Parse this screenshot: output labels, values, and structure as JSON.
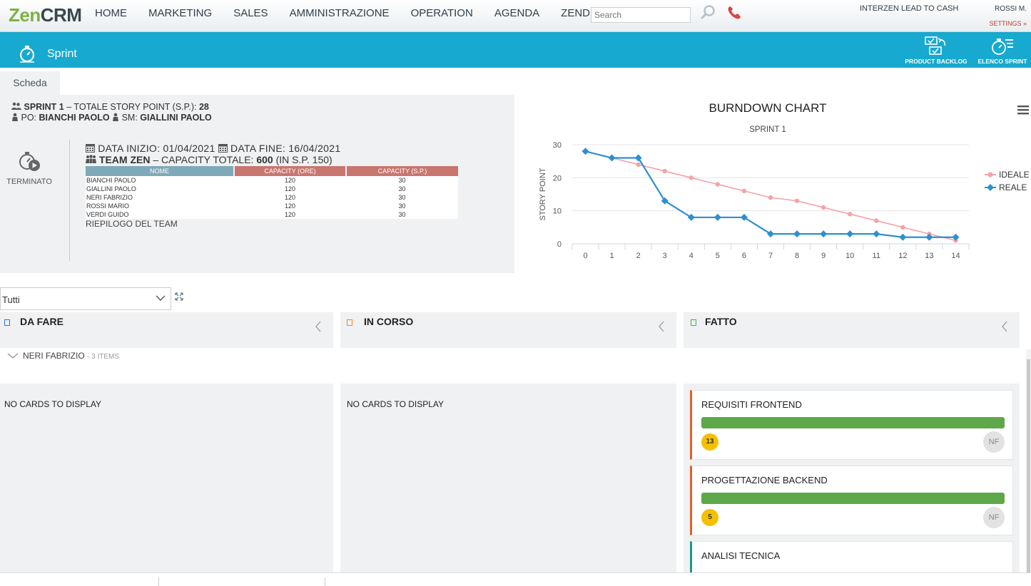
{
  "header": {
    "logo_part1": "Zen",
    "logo_part2": "CRM",
    "nav": [
      "HOME",
      "MARKETING",
      "SALES",
      "AMMINISTRAZIONE",
      "OPERATION",
      "AGENDA",
      "ZENDMS"
    ],
    "search_placeholder": "Search",
    "lead_to_cash": "INTERZEN LEAD TO CASH",
    "user": "ROSSI M.",
    "settings": "SETTINGS »"
  },
  "subheader": {
    "title": "Sprint",
    "btn_backlog": "PRODUCT BACKLOG",
    "btn_elenco": "ELENCO SPRINT"
  },
  "tab": "Scheda",
  "sprint": {
    "name": "SPRINT 1",
    "total_label": "– TOTALE STORY POINT (S.P.):",
    "total": "28",
    "po_label": "PO:",
    "po": "BIANCHI PAOLO",
    "sm_label": "SM:",
    "sm": "GIALLINI PAOLO",
    "status": "TERMINATO",
    "start_label": "DATA INIZIO:",
    "start": "01/04/2021",
    "end_label": "DATA FINE:",
    "end": "16/04/2021",
    "team": "TEAM ZEN",
    "capacity_label": "– CAPACITY TOTALE:",
    "capacity": "600",
    "capacity_sp": "(IN S.P. 150)",
    "team_table": {
      "headers": [
        "NOME",
        "CAPACITY (ORE)",
        "CAPACITY (S.P.)"
      ],
      "rows": [
        [
          "BIANCHI PAOLO",
          "120",
          "30"
        ],
        [
          "GIALLINI PAOLO",
          "120",
          "30"
        ],
        [
          "NERI FABRIZIO",
          "120",
          "30"
        ],
        [
          "ROSSI MARIO",
          "120",
          "30"
        ],
        [
          "VERDI GUIDO",
          "120",
          "30"
        ]
      ]
    },
    "team_summary": "RIEPILOGO DEL TEAM"
  },
  "chart_data": {
    "type": "line",
    "title": "BURNDOWN CHART",
    "subtitle": "SPRINT 1",
    "xlabel": "",
    "ylabel": "STORY POINT",
    "x": [
      0,
      1,
      2,
      3,
      4,
      5,
      6,
      7,
      8,
      9,
      10,
      11,
      12,
      13,
      14
    ],
    "ylim": [
      0,
      30
    ],
    "yticks": [
      0,
      10,
      20,
      30
    ],
    "grid": true,
    "legend": "right",
    "series": [
      {
        "name": "IDEALE",
        "color": "#f4a3a8",
        "marker": "circle",
        "values": [
          28,
          26,
          24,
          22,
          20,
          18,
          16,
          14,
          13,
          11,
          9,
          7,
          5,
          3,
          1
        ]
      },
      {
        "name": "REALE",
        "color": "#2f8fd0",
        "marker": "diamond",
        "values": [
          28,
          26,
          26,
          13,
          8,
          8,
          8,
          3,
          3,
          3,
          3,
          3,
          2,
          2,
          2
        ]
      }
    ]
  },
  "filter": {
    "value": "Tutti"
  },
  "kanban": {
    "columns": [
      {
        "title": "DA FARE",
        "color": "#3a6fd8"
      },
      {
        "title": "IN CORSO",
        "color": "#f08a24"
      },
      {
        "title": "FATTO",
        "color": "#4caf50"
      }
    ],
    "swimlane": {
      "name": "NERI FABRIZIO",
      "count": "- 3 ITEMS"
    },
    "empty_text": "NO CARDS TO DISPLAY",
    "cards": [
      {
        "title": "REQUISITI FRONTEND",
        "points": "13",
        "avatar": "NF",
        "progress": 1.0
      },
      {
        "title": "PROGETTAZIONE BACKEND",
        "points": "5",
        "avatar": "NF",
        "progress": 1.0
      },
      {
        "title": "ANALISI TECNICA",
        "points": "",
        "avatar": "",
        "progress": 0
      }
    ]
  }
}
